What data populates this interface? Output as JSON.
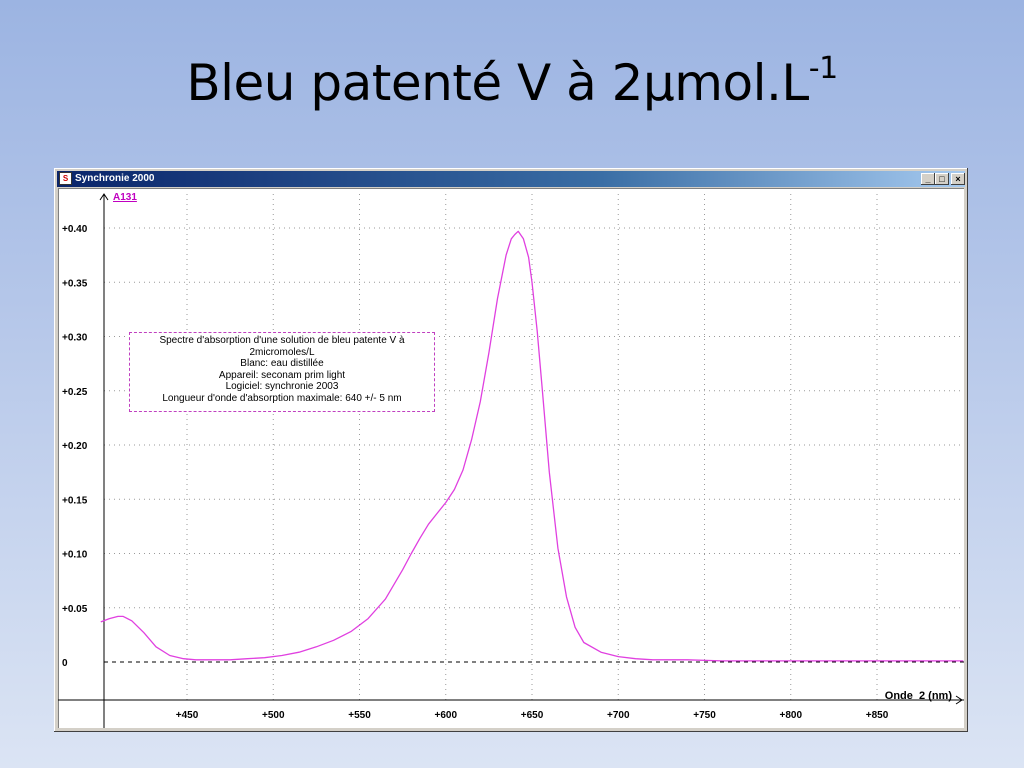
{
  "slide": {
    "title_main": "Bleu patenté V à 2µmol.L",
    "title_sup": "-1"
  },
  "window": {
    "title": "Synchronie 2000",
    "buttons": {
      "minimize": "_",
      "maximize": "□",
      "close": "×"
    }
  },
  "colors": {
    "series": "#e040e0",
    "grid": "#9a9a9a",
    "baseline": "#000000",
    "titlebar": "#0a246a"
  },
  "chart_data": {
    "type": "line",
    "title": "",
    "series_label": "A131",
    "xlabel": "Onde_2 (nm)",
    "ylabel": "",
    "xlim": [
      395,
      905
    ],
    "ylim": [
      -0.04,
      0.435
    ],
    "x_ticks": [
      "+450",
      "+500",
      "+550",
      "+600",
      "+650",
      "+700",
      "+750",
      "+800",
      "+850"
    ],
    "y_ticks": [
      "0",
      "+0.05",
      "+0.10",
      "+0.15",
      "+0.20",
      "+0.25",
      "+0.30",
      "+0.35",
      "+0.40"
    ],
    "grid": true,
    "baseline_y": 0,
    "annotation_lines": [
      "Spectre d'absorption d'une solution de bleu patente V à",
      "2micromoles/L",
      "Blanc: eau distillée",
      "Appareil: seconam prim light",
      "Logiciel: synchronie 2003",
      "Longueur d'onde d'absorption maximale: 640 +/- 5 nm"
    ],
    "series": [
      {
        "name": "A131",
        "x": [
          400,
          405,
          410,
          413,
          418,
          425,
          432,
          440,
          448,
          455,
          465,
          475,
          485,
          495,
          505,
          515,
          525,
          535,
          545,
          555,
          565,
          575,
          580,
          585,
          590,
          595,
          600,
          605,
          610,
          615,
          620,
          625,
          630,
          635,
          638,
          640,
          642,
          645,
          648,
          650,
          653,
          656,
          660,
          665,
          670,
          675,
          680,
          690,
          700,
          710,
          720,
          740,
          760,
          780,
          800,
          820,
          850,
          880,
          900
        ],
        "y": [
          0.037,
          0.04,
          0.042,
          0.042,
          0.038,
          0.027,
          0.014,
          0.006,
          0.003,
          0.002,
          0.002,
          0.002,
          0.003,
          0.004,
          0.006,
          0.009,
          0.014,
          0.02,
          0.028,
          0.04,
          0.058,
          0.085,
          0.1,
          0.114,
          0.127,
          0.137,
          0.147,
          0.159,
          0.177,
          0.205,
          0.24,
          0.285,
          0.335,
          0.375,
          0.39,
          0.394,
          0.397,
          0.39,
          0.373,
          0.35,
          0.305,
          0.25,
          0.175,
          0.105,
          0.06,
          0.032,
          0.018,
          0.009,
          0.005,
          0.003,
          0.002,
          0.002,
          0.001,
          0.001,
          0.001,
          0.001,
          0.001,
          0.001,
          0.001
        ]
      }
    ]
  }
}
